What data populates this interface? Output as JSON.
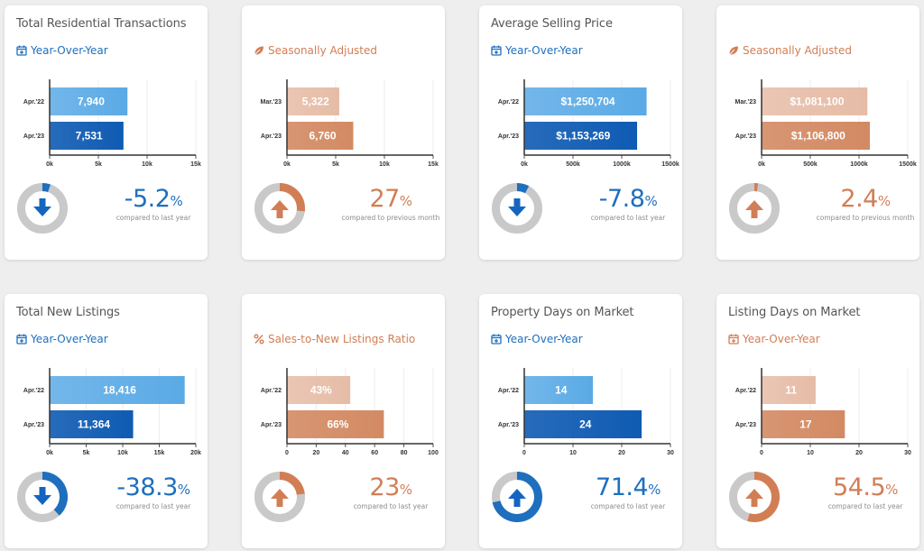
{
  "colors": {
    "blue_light": "#5aaae6",
    "blue_dark": "#0f5bb3",
    "blue_text": "#1e6fbe",
    "orange_light": "#e6bca6",
    "orange_dark": "#d38a63",
    "orange_text": "#d27e55",
    "donut_track": "#c9c9c9"
  },
  "cards": [
    {
      "title": "Total Residential Transactions",
      "subtitle": "Year-Over-Year",
      "subtitle_icon": "calendar-plus-icon",
      "theme": "blue",
      "chart_data": {
        "type": "bar",
        "orientation": "horizontal",
        "categories": [
          "Apr.'22",
          "Apr.'23"
        ],
        "values": [
          7940,
          7531
        ],
        "value_labels": [
          "7,940",
          "7,531"
        ],
        "xlim": [
          0,
          15000
        ],
        "xticks": [
          0,
          5000,
          10000,
          15000
        ],
        "xtick_labels": [
          "0k",
          "5k",
          "10k",
          "15k"
        ]
      },
      "change": {
        "value": "-5.2",
        "sign": "%",
        "direction": "down",
        "fraction": 0.052,
        "note": "compared to last year",
        "icon": "arrow-down-icon"
      }
    },
    {
      "title": "",
      "subtitle": "Seasonally Adjusted",
      "subtitle_icon": "leaf-icon",
      "theme": "orange",
      "chart_data": {
        "type": "bar",
        "orientation": "horizontal",
        "categories": [
          "Mar.'23",
          "Apr.'23"
        ],
        "values": [
          5322,
          6760
        ],
        "value_labels": [
          "5,322",
          "6,760"
        ],
        "xlim": [
          0,
          15000
        ],
        "xticks": [
          0,
          5000,
          10000,
          15000
        ],
        "xtick_labels": [
          "0k",
          "5k",
          "10k",
          "15k"
        ]
      },
      "change": {
        "value": "27",
        "sign": "%",
        "direction": "up",
        "fraction": 0.27,
        "note": "compared to previous month",
        "icon": "arrow-up-icon"
      }
    },
    {
      "title": "Average Selling Price",
      "subtitle": "Year-Over-Year",
      "subtitle_icon": "calendar-plus-icon",
      "theme": "blue",
      "chart_data": {
        "type": "bar",
        "orientation": "horizontal",
        "categories": [
          "Apr.'22",
          "Apr.'23"
        ],
        "values": [
          1250704,
          1153269
        ],
        "value_labels": [
          "$1,250,704",
          "$1,153,269"
        ],
        "xlim": [
          0,
          1500000
        ],
        "xticks": [
          0,
          500000,
          1000000,
          1500000
        ],
        "xtick_labels": [
          "0k",
          "500k",
          "1000k",
          "1500k"
        ]
      },
      "change": {
        "value": "-7.8",
        "sign": "%",
        "direction": "down",
        "fraction": 0.078,
        "note": "compared to last year",
        "icon": "arrow-down-icon"
      }
    },
    {
      "title": "",
      "subtitle": "Seasonally Adjusted",
      "subtitle_icon": "leaf-icon",
      "theme": "orange",
      "chart_data": {
        "type": "bar",
        "orientation": "horizontal",
        "categories": [
          "Mar.'23",
          "Apr.'23"
        ],
        "values": [
          1081100,
          1106800
        ],
        "value_labels": [
          "$1,081,100",
          "$1,106,800"
        ],
        "xlim": [
          0,
          1500000
        ],
        "xticks": [
          0,
          500000,
          1000000,
          1500000
        ],
        "xtick_labels": [
          "0k",
          "500k",
          "1000k",
          "1500k"
        ]
      },
      "change": {
        "value": "2.4",
        "sign": "%",
        "direction": "up",
        "fraction": 0.024,
        "note": "compared to previous month",
        "icon": "arrow-up-icon"
      }
    },
    {
      "title": "Total New Listings",
      "subtitle": "Year-Over-Year",
      "subtitle_icon": "calendar-plus-icon",
      "theme": "blue",
      "chart_data": {
        "type": "bar",
        "orientation": "horizontal",
        "categories": [
          "Apr.'22",
          "Apr.'23"
        ],
        "values": [
          18416,
          11364
        ],
        "value_labels": [
          "18,416",
          "11,364"
        ],
        "xlim": [
          0,
          20000
        ],
        "xticks": [
          0,
          5000,
          10000,
          15000,
          20000
        ],
        "xtick_labels": [
          "0k",
          "5k",
          "10k",
          "15k",
          "20k"
        ]
      },
      "change": {
        "value": "-38.3",
        "sign": "%",
        "direction": "down",
        "fraction": 0.383,
        "note": "compared to last year",
        "icon": "arrow-down-icon"
      }
    },
    {
      "title": "",
      "subtitle": "Sales-to-New Listings Ratio",
      "subtitle_icon": "percent-icon",
      "theme": "orange",
      "chart_data": {
        "type": "bar",
        "orientation": "horizontal",
        "categories": [
          "Apr.'22",
          "Apr.'23"
        ],
        "values": [
          43,
          66
        ],
        "value_labels": [
          "43%",
          "66%"
        ],
        "xlim": [
          0,
          100
        ],
        "xticks": [
          0,
          20,
          40,
          60,
          80,
          100
        ],
        "xtick_labels": [
          "0",
          "20",
          "40",
          "60",
          "80",
          "100"
        ]
      },
      "change": {
        "value": "23",
        "sign": "%",
        "direction": "up",
        "fraction": 0.23,
        "note": "compared to last year",
        "icon": "arrow-up-icon"
      }
    },
    {
      "title": "Property Days on Market",
      "subtitle": "Year-Over-Year",
      "subtitle_icon": "calendar-plus-icon",
      "theme": "blue",
      "chart_data": {
        "type": "bar",
        "orientation": "horizontal",
        "categories": [
          "Apr.'22",
          "Apr.'23"
        ],
        "values": [
          14,
          24
        ],
        "value_labels": [
          "14",
          "24"
        ],
        "xlim": [
          0,
          30
        ],
        "xticks": [
          0,
          10,
          20,
          30
        ],
        "xtick_labels": [
          "0",
          "10",
          "20",
          "30"
        ]
      },
      "change": {
        "value": "71.4",
        "sign": "%",
        "direction": "up",
        "fraction": 0.714,
        "note": "compared to last year",
        "icon": "arrow-up-icon"
      }
    },
    {
      "title": "Listing Days on Market",
      "subtitle": "Year-Over-Year",
      "subtitle_icon": "calendar-plus-icon",
      "theme": "orange",
      "chart_data": {
        "type": "bar",
        "orientation": "horizontal",
        "categories": [
          "Apr.'22",
          "Apr.'23"
        ],
        "values": [
          11,
          17
        ],
        "value_labels": [
          "11",
          "17"
        ],
        "xlim": [
          0,
          30
        ],
        "xticks": [
          0,
          10,
          20,
          30
        ],
        "xtick_labels": [
          "0",
          "10",
          "20",
          "30"
        ]
      },
      "change": {
        "value": "54.5",
        "sign": "%",
        "direction": "up",
        "fraction": 0.545,
        "note": "compared to last year",
        "icon": "arrow-up-icon"
      }
    }
  ]
}
